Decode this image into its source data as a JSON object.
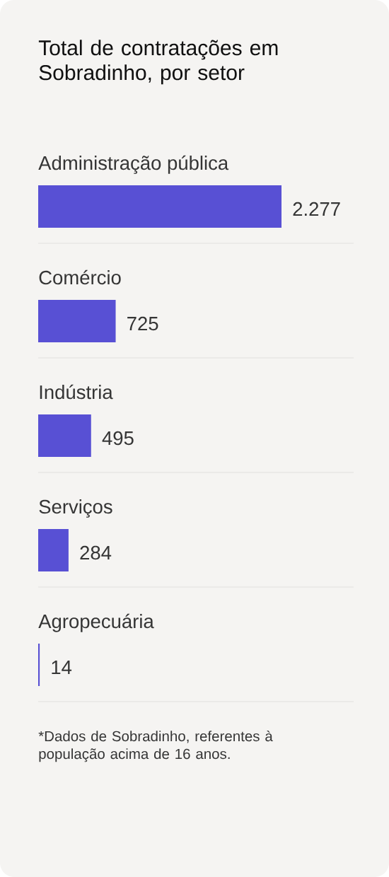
{
  "chart_data": {
    "type": "bar",
    "orientation": "horizontal",
    "title": "Total de contratações em Sobradinho, por setor",
    "categories": [
      "Administração pública",
      "Comércio",
      "Indústria",
      "Serviços",
      "Agropecuária"
    ],
    "values": [
      2277,
      725,
      495,
      284,
      14
    ],
    "value_labels": [
      "2.277",
      "725",
      "495",
      "284",
      "14"
    ],
    "color": "#5850d4",
    "annotations": [
      "*Dados de Sobradinho, referentes à população acima de 16 anos."
    ]
  }
}
